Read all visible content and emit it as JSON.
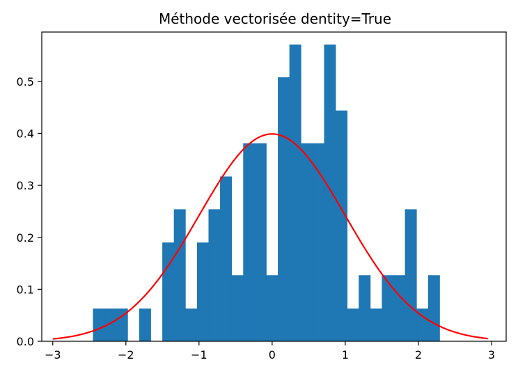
{
  "chart_data": {
    "type": "bar",
    "title": "Méthode vectorisée dentity=True",
    "xlabel": "",
    "ylabel": "",
    "xlim": [
      -3.15,
      3.2
    ],
    "ylim": [
      0,
      0.595
    ],
    "xticks": [
      -3,
      -2,
      -1,
      0,
      1,
      2,
      3
    ],
    "xtick_labels": [
      "−3",
      "−2",
      "−1",
      "0",
      "1",
      "2",
      "3"
    ],
    "yticks": [
      0.0,
      0.1,
      0.2,
      0.3,
      0.4,
      0.5
    ],
    "ytick_labels": [
      "0.0",
      "0.1",
      "0.2",
      "0.3",
      "0.4",
      "0.5"
    ],
    "grid": false,
    "histogram": {
      "bin_start": -2.45,
      "bin_width": 0.158,
      "density": [
        0.063,
        0.063,
        0.063,
        0.0,
        0.063,
        0.0,
        0.19,
        0.254,
        0.063,
        0.19,
        0.254,
        0.317,
        0.127,
        0.381,
        0.381,
        0.127,
        0.508,
        0.571,
        0.381,
        0.381,
        0.571,
        0.444,
        0.063,
        0.127,
        0.063,
        0.127,
        0.127,
        0.254,
        0.063,
        0.127
      ],
      "color": "#1f77b4"
    },
    "curve": {
      "function": "normal_pdf",
      "mean": 0,
      "std": 1,
      "x_range": [
        -3,
        2.95
      ],
      "color": "#ff0000"
    }
  }
}
